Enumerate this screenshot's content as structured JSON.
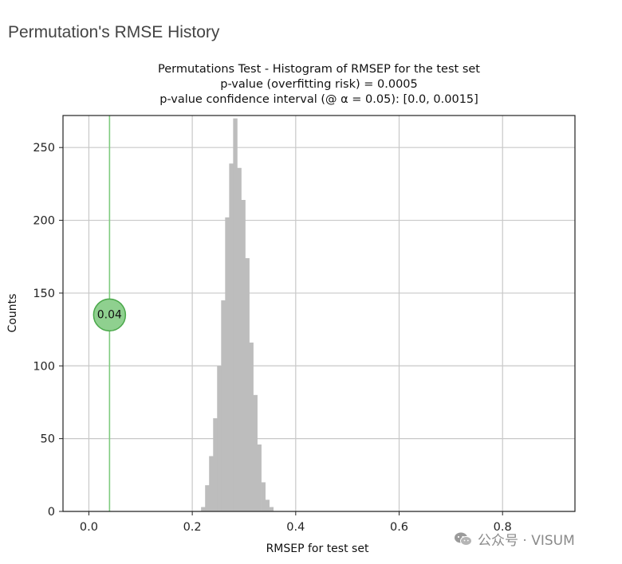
{
  "page": {
    "heading": "Permutation's RMSE History"
  },
  "watermark": {
    "text": "公众号 · VISUM",
    "icon": "wechat-icon"
  },
  "chart_data": {
    "type": "bar",
    "title_lines": [
      "Permutations Test - Histogram of RMSEP for the test set",
      "p-value (overfitting risk) = 0.0005",
      "p-value confidence interval (@ α = 0.05): [0.0, 0.0015]"
    ],
    "xlabel": "RMSEP for test set",
    "ylabel": "Counts",
    "xlim": [
      -0.05,
      0.94
    ],
    "ylim": [
      0,
      272
    ],
    "xticks": [
      0.0,
      0.2,
      0.4,
      0.6,
      0.8
    ],
    "xtick_labels": [
      "0.0",
      "0.2",
      "0.4",
      "0.6",
      "0.8"
    ],
    "yticks": [
      0,
      50,
      100,
      150,
      200,
      250
    ],
    "ytick_labels": [
      "0",
      "50",
      "100",
      "150",
      "200",
      "250"
    ],
    "grid": true,
    "bar_color": "#bdbdbd",
    "bin_width": 0.00775,
    "bins": [
      {
        "x": 0.217,
        "count": 3
      },
      {
        "x": 0.2248,
        "count": 18
      },
      {
        "x": 0.2325,
        "count": 38
      },
      {
        "x": 0.2403,
        "count": 64
      },
      {
        "x": 0.248,
        "count": 100
      },
      {
        "x": 0.2558,
        "count": 145
      },
      {
        "x": 0.2635,
        "count": 202
      },
      {
        "x": 0.2713,
        "count": 239
      },
      {
        "x": 0.279,
        "count": 270
      },
      {
        "x": 0.2868,
        "count": 236
      },
      {
        "x": 0.2945,
        "count": 214
      },
      {
        "x": 0.3023,
        "count": 174
      },
      {
        "x": 0.31,
        "count": 116
      },
      {
        "x": 0.3178,
        "count": 80
      },
      {
        "x": 0.3255,
        "count": 46
      },
      {
        "x": 0.3333,
        "count": 20
      },
      {
        "x": 0.341,
        "count": 8
      },
      {
        "x": 0.3488,
        "count": 3
      }
    ],
    "reference_line": {
      "x": 0.04,
      "color": "#7fcc7f"
    },
    "marker": {
      "label": "0.04",
      "x": 0.04,
      "y": 135,
      "fill": "#8fd08f",
      "stroke": "#4aa84a"
    }
  }
}
